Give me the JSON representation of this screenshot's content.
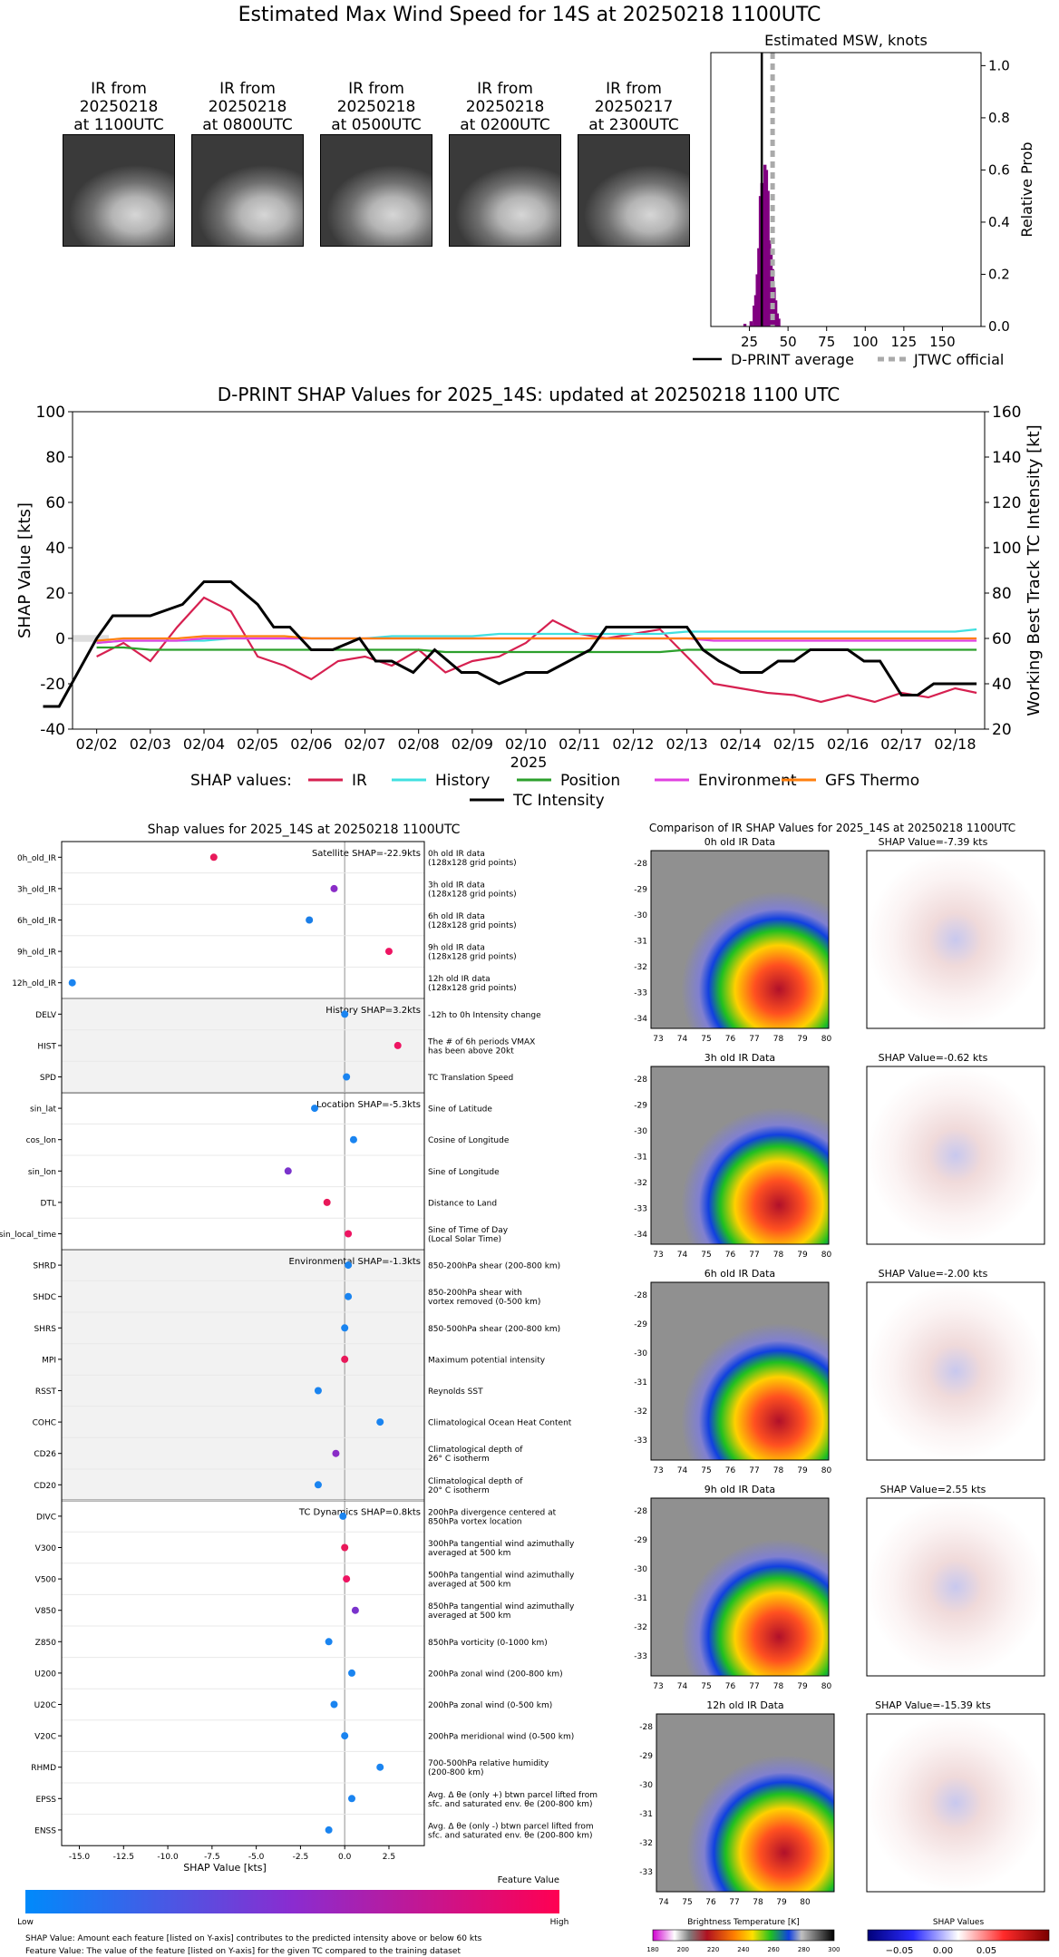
{
  "title": "Estimated Max Wind Speed for 14S at 20250218 1100UTC",
  "thumbnails": [
    {
      "line1": "IR from",
      "line2": "20250218",
      "line3": "at 1100UTC"
    },
    {
      "line1": "IR from",
      "line2": "20250218",
      "line3": "at 0800UTC"
    },
    {
      "line1": "IR from",
      "line2": "20250218",
      "line3": "at 0500UTC"
    },
    {
      "line1": "IR from",
      "line2": "20250218",
      "line3": "at 0200UTC"
    },
    {
      "line1": "IR from",
      "line2": "20250217",
      "line3": "at 2300UTC"
    }
  ],
  "chart_data": [
    {
      "type": "bar",
      "title": "Estimated MSW, knots",
      "ylabel": "Relative Prob",
      "xlim": [
        0,
        175
      ],
      "ylim": [
        0,
        1.05
      ],
      "xticks": [
        "25",
        "50",
        "75",
        "100",
        "125",
        "150"
      ],
      "yticks": [
        "0.0",
        "0.2",
        "0.4",
        "0.6",
        "0.8",
        "1.0"
      ],
      "histogram": {
        "x": [
          22,
          26,
          28,
          29,
          30,
          31,
          32,
          33,
          34,
          35,
          36,
          37,
          38,
          39,
          40,
          41,
          42,
          43,
          44
        ],
        "y": [
          0.01,
          0.02,
          0.08,
          0.12,
          0.2,
          0.3,
          0.5,
          0.55,
          0.48,
          0.62,
          0.6,
          0.52,
          0.33,
          0.28,
          0.22,
          0.15,
          0.1,
          0.05,
          0.03
        ]
      },
      "d_print_average": 33,
      "jtwc_official": 40,
      "legend": [
        "D-PRINT average",
        "JTWC official"
      ]
    },
    {
      "type": "line",
      "title": "D-PRINT SHAP Values for 2025_14S: updated at 20250218 1100 UTC",
      "xlabel": "2025",
      "ylabel": "SHAP Value [kts]",
      "y2label": "Working Best Track TC Intensity [kt]",
      "ylim": [
        -40,
        100
      ],
      "y2lim": [
        20,
        160
      ],
      "xticks": [
        "02/02",
        "02/03",
        "02/04",
        "02/05",
        "02/06",
        "02/07",
        "02/08",
        "02/09",
        "02/10",
        "02/11",
        "02/12",
        "02/13",
        "02/14",
        "02/15",
        "02/16",
        "02/17",
        "02/18"
      ],
      "yticks": [
        "-40",
        "-20",
        "0",
        "20",
        "40",
        "60",
        "80",
        "100"
      ],
      "y2ticks": [
        "20",
        "40",
        "60",
        "80",
        "100",
        "120",
        "140",
        "160"
      ],
      "legend_title": "SHAP values:",
      "x": [
        1.1,
        1.5,
        2.0,
        2.5,
        3.0,
        3.5,
        4.0,
        4.5,
        5.0,
        5.5,
        6.0,
        6.5,
        7.0,
        7.5,
        8.0,
        8.5,
        9.0,
        9.5,
        10.0,
        10.5,
        11.0,
        11.5,
        12.0,
        12.5,
        13.0,
        13.5,
        14.0,
        14.5,
        15.0,
        15.5,
        16.0,
        16.5,
        17.0,
        17.5,
        18.0,
        18.4
      ],
      "series": [
        {
          "name": "IR",
          "color": "#d62050",
          "values": [
            null,
            null,
            -8,
            -2,
            -10,
            5,
            18,
            12,
            -8,
            -12,
            -18,
            -10,
            -8,
            -12,
            -5,
            -15,
            -10,
            -8,
            -2,
            8,
            2,
            0,
            2,
            4,
            -8,
            -20,
            -22,
            -24,
            -25,
            -28,
            -25,
            -28,
            -24,
            -26,
            -22,
            -24
          ]
        },
        {
          "name": "History",
          "color": "#40e0e0",
          "values": [
            null,
            null,
            -2,
            -1,
            -1,
            -1,
            -1,
            0,
            0,
            0,
            0,
            0,
            0,
            1,
            1,
            1,
            1,
            2,
            2,
            2,
            2,
            2,
            2,
            2,
            3,
            3,
            3,
            3,
            3,
            3,
            3,
            3,
            3,
            3,
            3,
            4
          ]
        },
        {
          "name": "Position",
          "color": "#2ca02c",
          "values": [
            null,
            null,
            -4,
            -4,
            -5,
            -5,
            -5,
            -5,
            -5,
            -5,
            -5,
            -5,
            -5,
            -5,
            -5,
            -6,
            -6,
            -6,
            -6,
            -6,
            -6,
            -6,
            -6,
            -6,
            -5,
            -5,
            -5,
            -5,
            -5,
            -5,
            -5,
            -5,
            -5,
            -5,
            -5,
            -5
          ]
        },
        {
          "name": "Environment",
          "color": "#e040e0",
          "values": [
            null,
            null,
            -2,
            -1,
            -1,
            -1,
            0,
            0,
            0,
            0,
            0,
            0,
            0,
            0,
            0,
            0,
            0,
            0,
            0,
            0,
            0,
            0,
            0,
            0,
            0,
            -1,
            -1,
            -1,
            -1,
            -1,
            -1,
            -1,
            -1,
            -1,
            -1,
            -1
          ]
        },
        {
          "name": "GFS Thermo",
          "color": "#ff7f0e",
          "values": [
            null,
            null,
            -1,
            0,
            0,
            0,
            1,
            1,
            1,
            1,
            0,
            0,
            0,
            0,
            0,
            0,
            0,
            0,
            0,
            0,
            0,
            0,
            0,
            0,
            0,
            0,
            0,
            0,
            0,
            0,
            0,
            0,
            0,
            0,
            0,
            0
          ]
        }
      ],
      "intensity": {
        "name": "TC Intensity",
        "color": "#000000",
        "x": [
          1.0,
          1.3,
          2.0,
          2.3,
          3.0,
          3.6,
          4.0,
          4.5,
          5.0,
          5.3,
          5.6,
          6.0,
          6.4,
          6.9,
          7.2,
          7.5,
          7.9,
          8.3,
          8.8,
          9.1,
          9.5,
          10.0,
          10.4,
          10.8,
          11.2,
          11.5,
          12.0,
          12.5,
          13.0,
          13.3,
          13.6,
          14.0,
          14.4,
          14.7,
          15.0,
          15.3,
          15.6,
          16.0,
          16.3,
          16.6,
          17.0,
          17.3,
          17.6,
          18.0,
          18.4
        ],
        "values": [
          30,
          30,
          60,
          70,
          70,
          75,
          85,
          85,
          75,
          65,
          65,
          55,
          55,
          60,
          50,
          50,
          45,
          55,
          45,
          45,
          40,
          45,
          45,
          50,
          55,
          65,
          65,
          65,
          65,
          55,
          50,
          45,
          45,
          50,
          50,
          55,
          55,
          55,
          50,
          50,
          35,
          35,
          40,
          40,
          40
        ]
      }
    },
    {
      "type": "scatter",
      "title": "Shap values for 2025_14S at 20250218 1100UTC",
      "xlabel": "SHAP Value [kts]",
      "xlim": [
        -16,
        4.5
      ],
      "xticks": [
        "-15.0",
        "-12.5",
        "-10.0",
        "-7.5",
        "-5.0",
        "-2.5",
        "0.0",
        "2.5"
      ],
      "groups": [
        {
          "label": "Satellite SHAP=-22.9kts",
          "shaded": false,
          "features": [
            {
              "name": "0h_old_IR",
              "desc": [
                "0h old IR data",
                "(128x128 grid points)"
              ],
              "value": -7.4,
              "color": "#e8195a"
            },
            {
              "name": "3h_old_IR",
              "desc": [
                "3h old IR data",
                "(128x128 grid points)"
              ],
              "value": -0.6,
              "color": "#8a2cc7"
            },
            {
              "name": "6h_old_IR",
              "desc": [
                "6h old IR data",
                "(128x128 grid points)"
              ],
              "value": -2.0,
              "color": "#1a7ee8"
            },
            {
              "name": "9h_old_IR",
              "desc": [
                "9h old IR data",
                "(128x128 grid points)"
              ],
              "value": 2.5,
              "color": "#ee1462"
            },
            {
              "name": "12h_old_IR",
              "desc": [
                "12h old IR data",
                "(128x128 grid points)"
              ],
              "value": -15.4,
              "color": "#1a84f0"
            }
          ]
        },
        {
          "label": "History SHAP=3.2kts",
          "shaded": true,
          "features": [
            {
              "name": "DELV",
              "desc": [
                "-12h to 0h Intensity change"
              ],
              "value": 0.0,
              "color": "#1a84f0"
            },
            {
              "name": "HIST",
              "desc": [
                "The # of 6h periods VMAX",
                "has been above 20kt"
              ],
              "value": 3.0,
              "color": "#ee1462"
            },
            {
              "name": "SPD",
              "desc": [
                "TC Translation Speed"
              ],
              "value": 0.1,
              "color": "#1a84f0"
            }
          ]
        },
        {
          "label": "Location SHAP=-5.3kts",
          "shaded": false,
          "features": [
            {
              "name": "sin_lat",
              "desc": [
                "Sine of Latitude"
              ],
              "value": -1.7,
              "color": "#1a84f0"
            },
            {
              "name": "cos_lon",
              "desc": [
                "Cosine of Longitude"
              ],
              "value": 0.5,
              "color": "#1a84f0"
            },
            {
              "name": "sin_lon",
              "desc": [
                "Sine of Longitude"
              ],
              "value": -3.2,
              "color": "#7a33cc"
            },
            {
              "name": "DTL",
              "desc": [
                "Distance to Land"
              ],
              "value": -1.0,
              "color": "#e8195a"
            },
            {
              "name": "sin_local_time",
              "desc": [
                "Sine of Time of Day",
                "(Local Solar Time)"
              ],
              "value": 0.2,
              "color": "#ee1462"
            }
          ]
        },
        {
          "label": "Environmental SHAP=-1.3kts",
          "shaded": true,
          "features": [
            {
              "name": "SHRD",
              "desc": [
                "850-200hPa shear (200-800 km)"
              ],
              "value": 0.2,
              "color": "#1a84f0"
            },
            {
              "name": "SHDC",
              "desc": [
                "850-200hPa shear with",
                "vortex removed (0-500 km)"
              ],
              "value": 0.2,
              "color": "#1a84f0"
            },
            {
              "name": "SHRS",
              "desc": [
                "850-500hPa shear (200-800 km)"
              ],
              "value": 0.0,
              "color": "#1a84f0"
            },
            {
              "name": "MPI",
              "desc": [
                "Maximum potential intensity"
              ],
              "value": 0.0,
              "color": "#e8195a"
            },
            {
              "name": "RSST",
              "desc": [
                "Reynolds SST"
              ],
              "value": -1.5,
              "color": "#1a84f0"
            },
            {
              "name": "COHC",
              "desc": [
                "Climatological Ocean Heat Content"
              ],
              "value": 2.0,
              "color": "#1a84f0"
            },
            {
              "name": "CD26",
              "desc": [
                "Climatological depth of",
                "26° C isotherm"
              ],
              "value": -0.5,
              "color": "#8a2cc7"
            },
            {
              "name": "CD20",
              "desc": [
                "Climatological depth of",
                "20° C isotherm"
              ],
              "value": -1.5,
              "color": "#1a84f0"
            }
          ]
        },
        {
          "label": "TC Dynamics SHAP=0.8kts",
          "shaded": false,
          "features": [
            {
              "name": "DIVC",
              "desc": [
                "200hPa divergence centered at",
                "850hPa vortex location"
              ],
              "value": -0.1,
              "color": "#1a84f0"
            },
            {
              "name": "V300",
              "desc": [
                "300hPa tangential wind azimuthally",
                "averaged at 500 km"
              ],
              "value": 0.0,
              "color": "#e8195a"
            },
            {
              "name": "V500",
              "desc": [
                "500hPa tangential wind azimuthally",
                "averaged at 500 km"
              ],
              "value": 0.1,
              "color": "#ee1462"
            },
            {
              "name": "V850",
              "desc": [
                "850hPa tangential wind azimuthally",
                "averaged at 500 km"
              ],
              "value": 0.6,
              "color": "#7a33cc"
            },
            {
              "name": "Z850",
              "desc": [
                "850hPa vorticity (0-1000 km)"
              ],
              "value": -0.9,
              "color": "#1a84f0"
            },
            {
              "name": "U200",
              "desc": [
                "200hPa zonal wind (200-800 km)"
              ],
              "value": 0.4,
              "color": "#1a84f0"
            },
            {
              "name": "U20C",
              "desc": [
                "200hPa zonal wind (0-500 km)"
              ],
              "value": -0.6,
              "color": "#1a84f0"
            },
            {
              "name": "V20C",
              "desc": [
                "200hPa meridional wind (0-500 km)"
              ],
              "value": 0.0,
              "color": "#1a84f0"
            },
            {
              "name": "RHMD",
              "desc": [
                "700-500hPa relative humidity",
                "(200-800 km)"
              ],
              "value": 2.0,
              "color": "#1a84f0"
            },
            {
              "name": "EPSS",
              "desc": [
                "Avg. Δ θe (only +) btwn parcel lifted from",
                "sfc. and saturated env. θe (200-800 km)"
              ],
              "value": 0.4,
              "color": "#1a84f0"
            },
            {
              "name": "ENSS",
              "desc": [
                "Avg. Δ θe (only -) btwn parcel lifted from",
                "sfc. and saturated env. θe (200-800 km)"
              ],
              "value": -0.9,
              "color": "#1a84f0"
            }
          ]
        }
      ]
    }
  ],
  "colorbar": {
    "title": "Feature Value",
    "low": "Low",
    "high": "High"
  },
  "footnotes": [
    "SHAP Value: Amount each feature [listed on Y-axis] contributes to the predicted intensity above or below 60 kts",
    "Feature Value: The value of the feature [listed on Y-axis] for the given TC compared to the training dataset"
  ],
  "comparison": {
    "title": "Comparison of IR SHAP Values for 2025_14S at 20250218 1100UTC",
    "rows": [
      {
        "ir_title": "0h old IR Data",
        "shap_title": "SHAP Value=-7.39 kts"
      },
      {
        "ir_title": "3h old IR Data",
        "shap_title": "SHAP Value=-0.62 kts"
      },
      {
        "ir_title": "6h old IR Data",
        "shap_title": "SHAP Value=-2.00 kts"
      },
      {
        "ir_title": "9h old IR Data",
        "shap_title": "SHAP Value=2.55 kts"
      },
      {
        "ir_title": "12h old IR Data",
        "shap_title": "SHAP Value=-15.39 kts"
      }
    ],
    "lat_ticks": [
      "-28",
      "-29",
      "-30",
      "-31",
      "-32",
      "-33",
      "-34"
    ],
    "lon_ticks": [
      "73",
      "74",
      "75",
      "76",
      "77",
      "78",
      "79",
      "80"
    ],
    "lon_ticks_shifted": [
      "74",
      "75",
      "76",
      "77",
      "78",
      "79",
      "80"
    ],
    "bt_colorbar": {
      "title": "Brightness Temperature [K]",
      "ticks": [
        "180",
        "200",
        "220",
        "240",
        "260",
        "280",
        "300"
      ]
    },
    "shap_colorbar": {
      "title": "SHAP Values",
      "ticks": [
        "−0.05",
        "0.00",
        "0.05"
      ]
    }
  }
}
